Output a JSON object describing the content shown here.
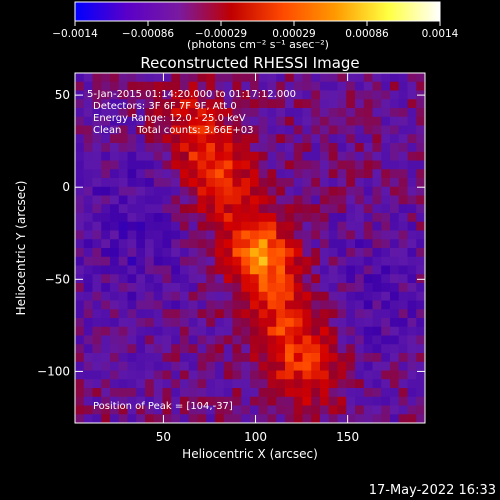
{
  "chart_data": {
    "type": "heatmap",
    "title": "Reconstructed RHESSI Image",
    "xlabel": "Heliocentric X (arcsec)",
    "ylabel": "Heliocentric Y (arcsec)",
    "xlim": [
      2,
      192
    ],
    "ylim": [
      -128,
      62
    ],
    "x_ticks": [
      50,
      100,
      150
    ],
    "y_ticks": [
      50,
      0,
      -50,
      -100
    ],
    "colorbar": {
      "label": "(photons cm⁻² s⁻¹ asec⁻²)",
      "range": [
        -0.0014,
        0.0014
      ],
      "tick_labels": [
        "-0.0014",
        "-0.00086",
        "-0.00029",
        "0.00029",
        "0.00086",
        "0.0014"
      ],
      "stops": [
        "#0000ff",
        "#5a00c8",
        "#7a1aa0",
        "#c00000",
        "#ff4a00",
        "#ff9a00",
        "#ffff40",
        "#ffffff"
      ]
    },
    "annotations": [
      "5-Jan-2015 01:14:20.000 to 01:17:12.000",
      "Detectors: 3F 6F 7F 9F, Att 0",
      "Energy Range: 12.0 - 25.0 keV",
      "Clean     Total counts: 3.66E+03"
    ],
    "peak_label": "Position of Peak = [104,-37]",
    "peak_position": [
      104,
      -37
    ],
    "footer_date": "17-May-2022 16:33",
    "source_axis": {
      "from": [
        65,
        35
      ],
      "to": [
        128,
        -100
      ]
    }
  }
}
